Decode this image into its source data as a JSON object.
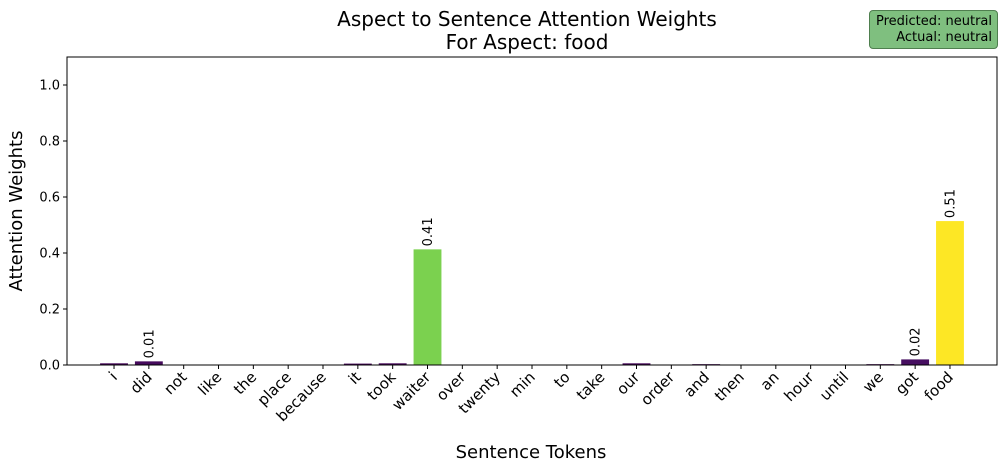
{
  "chart_data": {
    "type": "bar",
    "title": "Aspect to Sentence Attention Weights",
    "subtitle": "For Aspect: food",
    "xlabel": "Sentence Tokens",
    "ylabel": "Attention Weights",
    "ylim": [
      0,
      1.1
    ],
    "yticks": [
      "0.0",
      "0.2",
      "0.4",
      "0.6",
      "0.8",
      "1.0"
    ],
    "categories": [
      "i",
      "did",
      "not",
      "like",
      "the",
      "place",
      "because",
      "it",
      "took",
      "waiter",
      "over",
      "twenty",
      "min",
      "to",
      "take",
      "our",
      "order",
      "and",
      "then",
      "an",
      "hour",
      "until",
      "we",
      "got",
      "food"
    ],
    "values": [
      0.006,
      0.013,
      0.0,
      0.0,
      0.0,
      0.0,
      0.0,
      0.005,
      0.006,
      0.413,
      0.0,
      0.0,
      0.0,
      0.0,
      0.0,
      0.006,
      0.0,
      0.003,
      0.0,
      0.0,
      0.0,
      0.0,
      0.003,
      0.02,
      0.514
    ],
    "data_labels": {
      "1": "0.01",
      "9": "0.41",
      "23": "0.02",
      "24": "0.51"
    },
    "colormap": "viridis",
    "grid": false,
    "prediction": {
      "predicted": "Predicted: neutral",
      "actual": "Actual: neutral",
      "box_color": "#7fbf7f"
    }
  }
}
